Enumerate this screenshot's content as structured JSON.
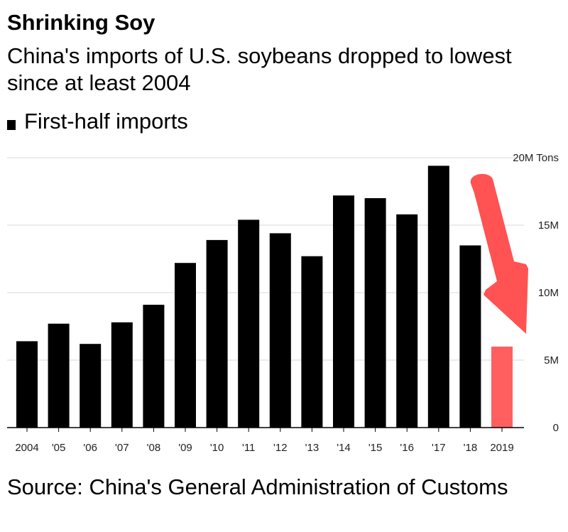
{
  "title": "Shrinking Soy",
  "subtitle": "China's imports of U.S. soybeans dropped to lowest since at least 2004",
  "legend": {
    "label": "First-half imports",
    "color": "#000000"
  },
  "source": "Source: China's General Administration of Customs",
  "chart_data": {
    "type": "bar",
    "title": "Shrinking Soy",
    "subtitle": "China's imports of U.S. soybeans dropped to lowest since at least 2004",
    "categories": [
      "2004",
      "'05",
      "'06",
      "'07",
      "'08",
      "'09",
      "'10",
      "'11",
      "'12",
      "'13",
      "'14",
      "'15",
      "'16",
      "'17",
      "'18",
      "2019"
    ],
    "series": [
      {
        "name": "First-half imports",
        "values": [
          6.4,
          7.7,
          6.2,
          7.8,
          9.1,
          12.2,
          13.9,
          15.4,
          14.4,
          12.7,
          17.2,
          17.0,
          15.8,
          19.4,
          13.5,
          6.0
        ],
        "colors": [
          "#000000",
          "#000000",
          "#000000",
          "#000000",
          "#000000",
          "#000000",
          "#000000",
          "#000000",
          "#000000",
          "#000000",
          "#000000",
          "#000000",
          "#000000",
          "#000000",
          "#000000",
          "#ff5f5f"
        ]
      }
    ],
    "y_ticks": [
      {
        "value": 0,
        "label": "0"
      },
      {
        "value": 5,
        "label": "5M"
      },
      {
        "value": 10,
        "label": "10M"
      },
      {
        "value": 15,
        "label": "15M"
      },
      {
        "value": 20,
        "label": "20M Tons"
      }
    ],
    "ylim": [
      0,
      20
    ],
    "grid": true,
    "y_axis_side": "right",
    "xlabel": "",
    "ylabel": "",
    "annotation": {
      "type": "arrow",
      "color": "#ff5252",
      "description": "downward arrow pointing to 2019"
    }
  }
}
